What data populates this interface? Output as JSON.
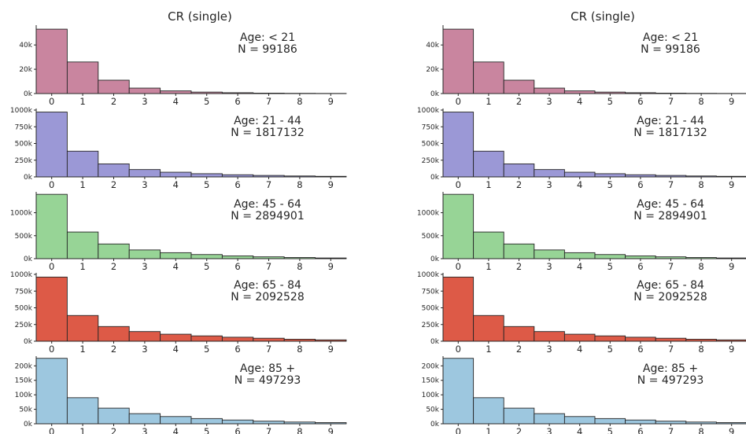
{
  "figure": {
    "panels": [
      {
        "title": "CR (single)"
      },
      {
        "title": "CR (single)"
      }
    ]
  },
  "chart_data": [
    {
      "type": "bar",
      "title": "CR (single)",
      "categories": [
        "0",
        "1",
        "2",
        "3",
        "4",
        "5",
        "6",
        "7",
        "8",
        "9"
      ],
      "values": [
        53000,
        26000,
        11000,
        4500,
        2200,
        1200,
        700,
        350,
        200,
        120
      ],
      "ylim": [
        0,
        55000
      ],
      "yticks": [
        0,
        20000,
        40000
      ],
      "ytick_labels": [
        "0k",
        "20k",
        "40k"
      ],
      "annotation": [
        "Age: < 21",
        "N = 99186"
      ],
      "color": "#c9859f"
    },
    {
      "type": "bar",
      "categories": [
        "0",
        "1",
        "2",
        "3",
        "4",
        "5",
        "6",
        "7",
        "8",
        "9"
      ],
      "values": [
        970000,
        385000,
        195000,
        110000,
        70000,
        48000,
        32000,
        22000,
        14000,
        9000
      ],
      "ylim": [
        0,
        1000000
      ],
      "yticks": [
        0,
        250000,
        500000,
        750000,
        1000000
      ],
      "ytick_labels": [
        "0k",
        "250k",
        "500k",
        "750k",
        "1000k"
      ],
      "annotation": [
        "Age: 21 - 44",
        "N = 1817132"
      ],
      "color": "#9b98d6"
    },
    {
      "type": "bar",
      "categories": [
        "0",
        "1",
        "2",
        "3",
        "4",
        "5",
        "6",
        "7",
        "8",
        "9"
      ],
      "values": [
        1400000,
        580000,
        320000,
        190000,
        130000,
        90000,
        60000,
        40000,
        25000,
        15000
      ],
      "ylim": [
        0,
        1420000
      ],
      "yticks": [
        0,
        500000,
        1000000
      ],
      "ytick_labels": [
        "0k",
        "500k",
        "1000k"
      ],
      "annotation": [
        "Age: 45 - 64",
        "N = 2894901"
      ],
      "color": "#97d496"
    },
    {
      "type": "bar",
      "categories": [
        "0",
        "1",
        "2",
        "3",
        "4",
        "5",
        "6",
        "7",
        "8",
        "9"
      ],
      "values": [
        960000,
        385000,
        220000,
        145000,
        105000,
        80000,
        60000,
        45000,
        30000,
        20000
      ],
      "ylim": [
        0,
        1000000
      ],
      "yticks": [
        0,
        250000,
        500000,
        750000,
        1000000
      ],
      "ytick_labels": [
        "0k",
        "250k",
        "500k",
        "750k",
        "1000k"
      ],
      "annotation": [
        "Age: 65 - 84",
        "N = 2092528"
      ],
      "color": "#dd5a47"
    },
    {
      "type": "bar",
      "categories": [
        "0",
        "1",
        "2",
        "3",
        "4",
        "5",
        "6",
        "7",
        "8",
        "9"
      ],
      "values": [
        226000,
        90000,
        54000,
        35000,
        25000,
        18000,
        13000,
        9000,
        6000,
        4000
      ],
      "ylim": [
        0,
        228000
      ],
      "yticks": [
        0,
        50000,
        100000,
        150000,
        200000
      ],
      "ytick_labels": [
        "0k",
        "50k",
        "100k",
        "150k",
        "200k"
      ],
      "annotation": [
        "Age: 85 +",
        "N = 497293"
      ],
      "color": "#9dc7df"
    }
  ]
}
